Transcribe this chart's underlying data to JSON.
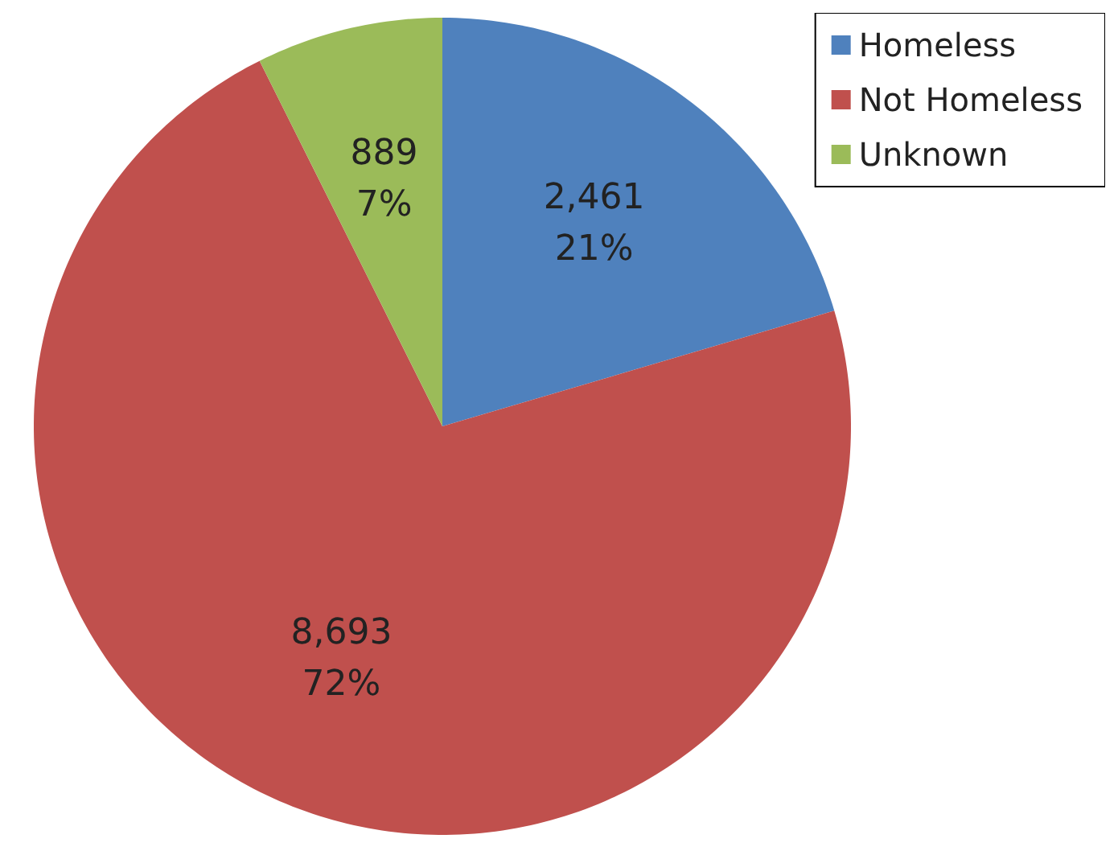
{
  "chart_data": {
    "type": "pie",
    "categories": [
      "Homeless",
      "Not Homeless",
      "Unknown"
    ],
    "values": [
      2461,
      8693,
      889
    ],
    "colors": [
      "#4f81bd",
      "#c0504d",
      "#9bbb59"
    ],
    "value_labels": [
      "2,461\n21%",
      "8,693\n72%",
      "889\n7%"
    ],
    "legend": "top right"
  }
}
